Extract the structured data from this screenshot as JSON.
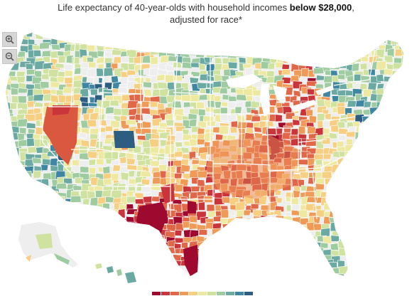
{
  "title": {
    "line1_prefix": "Life expectancy of 40-year-olds with household incomes ",
    "line1_bold": "below $28,000",
    "line1_suffix": ",",
    "line2": "adjusted for race*"
  },
  "controls": {
    "zoom_in": "zoom-in-icon",
    "zoom_out": "zoom-out-icon"
  },
  "map": {
    "projection": "albers-usa",
    "insets": [
      "alaska",
      "hawaii"
    ],
    "no_data_color": "#eeeeee",
    "border_color": "#ffffff",
    "hotspots": [
      {
        "region": "nevada",
        "level": 1
      },
      {
        "region": "oklahoma",
        "level": 2
      },
      {
        "region": "west-texas",
        "level": 0
      },
      {
        "region": "south-texas",
        "level": 0
      },
      {
        "region": "kentucky-indiana",
        "level": 1
      },
      {
        "region": "colorado",
        "level": 9
      },
      {
        "region": "montana-west",
        "level": 8
      },
      {
        "region": "california-coast",
        "level": 7
      },
      {
        "region": "florida",
        "level": 6
      },
      {
        "region": "new-england",
        "level": 6
      }
    ]
  },
  "legend": {
    "colors": [
      "#9e0a2f",
      "#c9353a",
      "#e06848",
      "#ef9a57",
      "#f6cf82",
      "#eee9a0",
      "#cfe29f",
      "#9fcba0",
      "#6aaaa2",
      "#3f86a2",
      "#2d5e82"
    ]
  }
}
